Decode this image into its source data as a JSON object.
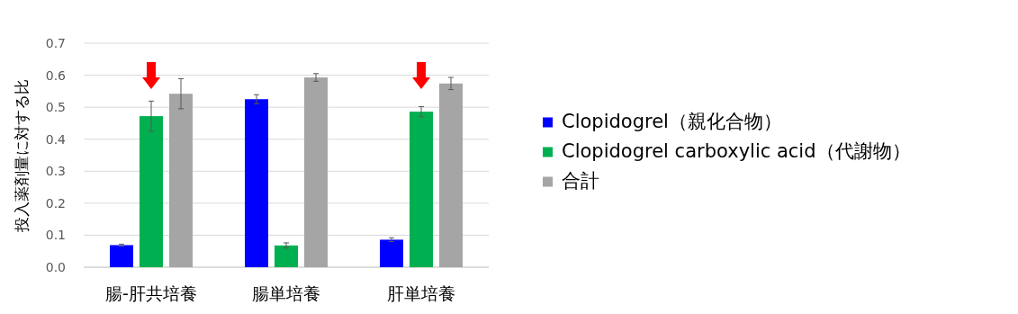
{
  "chart_data": {
    "type": "bar",
    "ylabel": "投入薬剤量に対する比",
    "categories": [
      "腸-肝共培養",
      "腸単培養",
      "肝単培養"
    ],
    "series": [
      {
        "name": "Clopidogrel（親化合物）",
        "color": "#0000ff",
        "values": [
          0.069,
          0.525,
          0.086
        ],
        "errors": [
          0.003,
          0.014,
          0.006
        ]
      },
      {
        "name": "Clopidogrel carboxylic acid（代謝物）",
        "color": "#00b050",
        "values": [
          0.472,
          0.068,
          0.486
        ],
        "errors": [
          0.047,
          0.008,
          0.016
        ]
      },
      {
        "name": "合計",
        "color": "#a5a5a5",
        "values": [
          0.542,
          0.593,
          0.574
        ],
        "errors": [
          0.047,
          0.012,
          0.019
        ]
      }
    ],
    "ylim": [
      0,
      0.7
    ],
    "yticks": [
      {
        "value": 0,
        "label": "0.0"
      },
      0.1,
      0.2,
      0.3,
      0.4,
      0.5,
      0.6,
      0.7
    ],
    "grid": "y",
    "legend": "right"
  }
}
